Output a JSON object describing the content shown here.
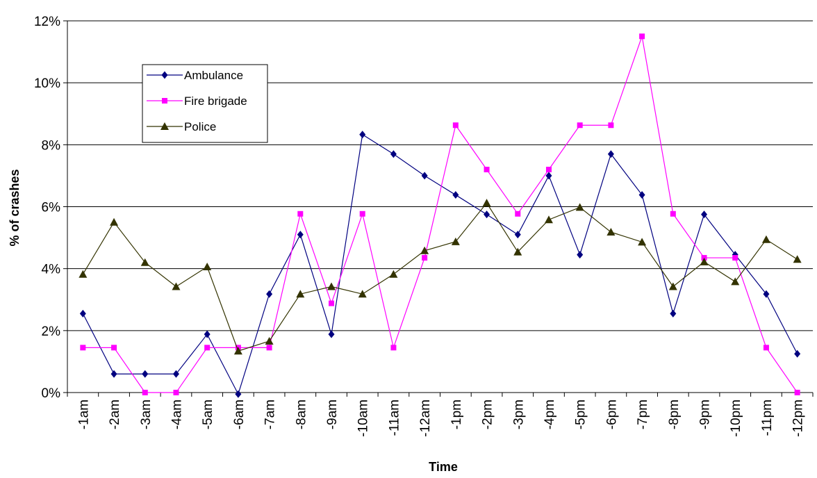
{
  "chart_data": {
    "type": "line",
    "xlabel": "Time",
    "ylabel": "% of crashes",
    "ylim": [
      0,
      12
    ],
    "y_ticks": [
      "0%",
      "2%",
      "4%",
      "6%",
      "8%",
      "10%",
      "12%"
    ],
    "grid": "horizontal",
    "legend_position": "top-left",
    "categories": [
      "-1am",
      "-2am",
      "-3am",
      "-4am",
      "-5am",
      "-6am",
      "-7am",
      "-8am",
      "-9am",
      "-10am",
      "-11am",
      "-12am",
      "-1pm",
      "-2pm",
      "-3pm",
      "-4pm",
      "-5pm",
      "-6pm",
      "-7pm",
      "-8pm",
      "-9pm",
      "-10pm",
      "-11pm",
      "-12pm"
    ],
    "series": [
      {
        "name": "Ambulance",
        "color": "#000080",
        "marker": "diamond",
        "values": [
          2.55,
          0.6,
          0.6,
          0.6,
          1.88,
          -0.05,
          3.18,
          5.1,
          1.88,
          8.33,
          7.7,
          7.0,
          6.38,
          5.75,
          5.1,
          7.0,
          4.45,
          7.7,
          6.38,
          2.55,
          5.75,
          4.45,
          3.18,
          1.25
        ]
      },
      {
        "name": "Fire brigade",
        "color": "#FF00FF",
        "marker": "square",
        "values": [
          1.45,
          1.45,
          0.0,
          0.0,
          1.45,
          1.45,
          1.45,
          5.77,
          2.88,
          5.77,
          1.45,
          4.35,
          8.63,
          7.2,
          5.77,
          7.2,
          8.63,
          8.63,
          11.5,
          5.77,
          4.35,
          4.35,
          1.45,
          0.0
        ]
      },
      {
        "name": "Police",
        "color": "#333300",
        "marker": "triangle",
        "values": [
          3.82,
          5.5,
          4.2,
          3.42,
          4.06,
          1.34,
          1.66,
          3.18,
          3.42,
          3.18,
          3.82,
          4.58,
          4.87,
          6.12,
          4.54,
          5.58,
          5.98,
          5.18,
          4.86,
          3.42,
          4.22,
          3.58,
          4.94,
          4.3
        ]
      }
    ]
  }
}
